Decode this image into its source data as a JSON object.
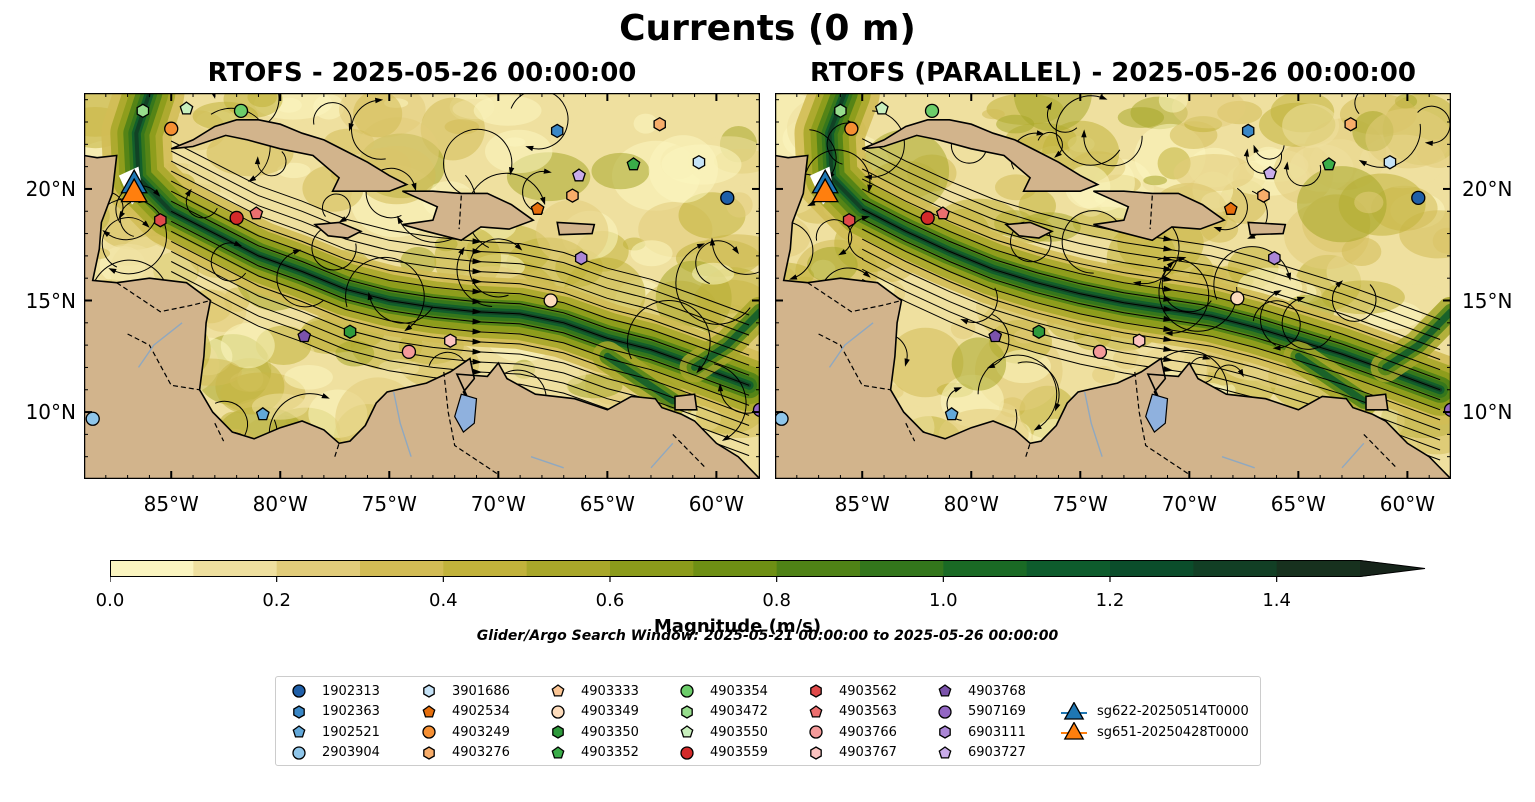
{
  "title": "Currents (0 m)",
  "panels": [
    {
      "title": "RTOFS - 2025-05-26 00:00:00"
    },
    {
      "title": "RTOFS (PARALLEL) - 2025-05-26 00:00:00"
    }
  ],
  "map": {
    "extent": {
      "lon": [
        -89,
        -58
      ],
      "lat": [
        7,
        24.3
      ]
    },
    "lon_ticks": [
      "85°W",
      "80°W",
      "75°W",
      "70°W",
      "65°W",
      "60°W"
    ],
    "lat_ticks": [
      "20°N",
      "15°N",
      "10°N"
    ],
    "land_color": "#d2b48c",
    "lake_color": "#8fb1de"
  },
  "colorbar": {
    "label": "Magnitude (m/s)",
    "ticks": [
      "0.0",
      "0.2",
      "0.4",
      "0.6",
      "0.8",
      "1.0",
      "1.2",
      "1.4"
    ],
    "range": [
      0,
      1.5
    ],
    "extend": "max",
    "colors": [
      "#fbf5c0",
      "#efe09f",
      "#e1cc7a",
      "#d2bc55",
      "#c1b23b",
      "#a8a72a",
      "#8b9b1b",
      "#6e8f14",
      "#4f8216",
      "#33761c",
      "#1a6a25",
      "#0e5c2d",
      "#0b4d2b",
      "#123f25",
      "#17311e",
      "#16241a"
    ]
  },
  "search_window": "Glider/Argo Search Window: 2025-05-21 00:00:00 to 2025-05-26 00:00:00",
  "legend": [
    {
      "label": "1902313",
      "marker": "circle",
      "color": "#1f5fa8"
    },
    {
      "label": "1902363",
      "marker": "hexagon",
      "color": "#3a87c6"
    },
    {
      "label": "1902521",
      "marker": "pentagon",
      "color": "#62a8d9"
    },
    {
      "label": "2903904",
      "marker": "circle",
      "color": "#8fc6ea"
    },
    {
      "label": "3901686",
      "marker": "hexagon",
      "color": "#c6e3f7"
    },
    {
      "label": "4902534",
      "marker": "pentagon",
      "color": "#e66e0c"
    },
    {
      "label": "4903249",
      "marker": "circle",
      "color": "#f58f33"
    },
    {
      "label": "4903276",
      "marker": "hexagon",
      "color": "#f8ad6a"
    },
    {
      "label": "4903333",
      "marker": "pentagon",
      "color": "#fbc594"
    },
    {
      "label": "4903349",
      "marker": "circle",
      "color": "#fddcbc"
    },
    {
      "label": "4903350",
      "marker": "hexagon",
      "color": "#2e9a3c"
    },
    {
      "label": "4903352",
      "marker": "pentagon",
      "color": "#3aad49"
    },
    {
      "label": "4903354",
      "marker": "circle",
      "color": "#6ccd6a"
    },
    {
      "label": "4903472",
      "marker": "hexagon",
      "color": "#97dd8d"
    },
    {
      "label": "4903550",
      "marker": "pentagon",
      "color": "#c8efbd"
    },
    {
      "label": "4903559",
      "marker": "circle",
      "color": "#d42a2a"
    },
    {
      "label": "4903562",
      "marker": "hexagon",
      "color": "#e04a4a"
    },
    {
      "label": "4903563",
      "marker": "pentagon",
      "color": "#ec6f6f"
    },
    {
      "label": "4903766",
      "marker": "circle",
      "color": "#f49a9a"
    },
    {
      "label": "4903767",
      "marker": "hexagon",
      "color": "#fbc3c0"
    },
    {
      "label": "4903768",
      "marker": "pentagon",
      "color": "#7b52ab"
    },
    {
      "label": "5907169",
      "marker": "circle",
      "color": "#9366c4"
    },
    {
      "label": "6903111",
      "marker": "hexagon",
      "color": "#ab86d6"
    },
    {
      "label": "6903727",
      "marker": "pentagon",
      "color": "#c9acea"
    },
    {
      "label": "sg622-20250514T0000",
      "marker": "triangle",
      "color": "#1f77b4"
    },
    {
      "label": "sg651-20250428T0000",
      "marker": "triangle",
      "color": "#ff7f0e"
    }
  ],
  "markers_left": [
    {
      "id": "4903472",
      "lon": -86.3,
      "lat": 23.5
    },
    {
      "id": "4903550",
      "lon": -84.3,
      "lat": 23.6
    },
    {
      "id": "4903354",
      "lon": -81.8,
      "lat": 23.5
    },
    {
      "id": "4903249",
      "lon": -85.0,
      "lat": 22.7
    },
    {
      "id": "1902363",
      "lon": -67.3,
      "lat": 22.6
    },
    {
      "id": "4903276",
      "lon": -62.6,
      "lat": 22.9
    },
    {
      "id": "4903352",
      "lon": -63.8,
      "lat": 21.1
    },
    {
      "id": "3901686",
      "lon": -60.8,
      "lat": 21.2
    },
    {
      "id": "6903727",
      "lon": -66.3,
      "lat": 20.6
    },
    {
      "id": "4903276",
      "lon": -66.6,
      "lat": 19.7
    },
    {
      "id": "1902313",
      "lon": -59.5,
      "lat": 19.6
    },
    {
      "id": "4902534",
      "lon": -68.2,
      "lat": 19.1
    },
    {
      "id": "4903562",
      "lon": -85.5,
      "lat": 18.6
    },
    {
      "id": "4903559",
      "lon": -82.0,
      "lat": 18.7
    },
    {
      "id": "4903563",
      "lon": -81.1,
      "lat": 18.9
    },
    {
      "id": "6903111",
      "lon": -66.2,
      "lat": 16.9
    },
    {
      "id": "4903349",
      "lon": -67.6,
      "lat": 15.0
    },
    {
      "id": "4903768",
      "lon": -78.9,
      "lat": 13.4
    },
    {
      "id": "4903350",
      "lon": -76.8,
      "lat": 13.6
    },
    {
      "id": "4903766",
      "lon": -74.1,
      "lat": 12.7
    },
    {
      "id": "4903767",
      "lon": -72.2,
      "lat": 13.2
    },
    {
      "id": "1902521",
      "lon": -80.8,
      "lat": 9.9
    },
    {
      "id": "2903904",
      "lon": -88.6,
      "lat": 9.7
    },
    {
      "id": "5907169",
      "lon": -58.0,
      "lat": 10.1
    }
  ],
  "markers_right": [
    {
      "id": "4903472",
      "lon": -86.0,
      "lat": 23.5
    },
    {
      "id": "4903550",
      "lon": -84.1,
      "lat": 23.6
    },
    {
      "id": "4903354",
      "lon": -81.8,
      "lat": 23.5
    },
    {
      "id": "4903249",
      "lon": -85.5,
      "lat": 22.7
    },
    {
      "id": "1902363",
      "lon": -67.3,
      "lat": 22.6
    },
    {
      "id": "4903276",
      "lon": -62.6,
      "lat": 22.9
    },
    {
      "id": "4903352",
      "lon": -63.6,
      "lat": 21.1
    },
    {
      "id": "3901686",
      "lon": -60.8,
      "lat": 21.2
    },
    {
      "id": "6903727",
      "lon": -66.3,
      "lat": 20.7
    },
    {
      "id": "4903276",
      "lon": -66.6,
      "lat": 19.7
    },
    {
      "id": "1902313",
      "lon": -59.5,
      "lat": 19.6
    },
    {
      "id": "4902534",
      "lon": -68.1,
      "lat": 19.1
    },
    {
      "id": "4903562",
      "lon": -85.6,
      "lat": 18.6
    },
    {
      "id": "4903559",
      "lon": -82.0,
      "lat": 18.7
    },
    {
      "id": "4903563",
      "lon": -81.3,
      "lat": 18.9
    },
    {
      "id": "6903111",
      "lon": -66.1,
      "lat": 16.9
    },
    {
      "id": "4903349",
      "lon": -67.8,
      "lat": 15.1
    },
    {
      "id": "4903768",
      "lon": -78.9,
      "lat": 13.4
    },
    {
      "id": "4903350",
      "lon": -76.9,
      "lat": 13.6
    },
    {
      "id": "4903766",
      "lon": -74.1,
      "lat": 12.7
    },
    {
      "id": "4903767",
      "lon": -72.3,
      "lat": 13.2
    },
    {
      "id": "1902521",
      "lon": -80.9,
      "lat": 9.9
    },
    {
      "id": "2903904",
      "lon": -88.7,
      "lat": 9.7
    },
    {
      "id": "5907169",
      "lon": -58.0,
      "lat": 10.1
    }
  ],
  "gliders": [
    {
      "id": "sg622-20250514T0000",
      "lon": -86.7,
      "lat": 20.2
    },
    {
      "id": "sg651-20250428T0000",
      "lon": -86.7,
      "lat": 19.8
    }
  ]
}
